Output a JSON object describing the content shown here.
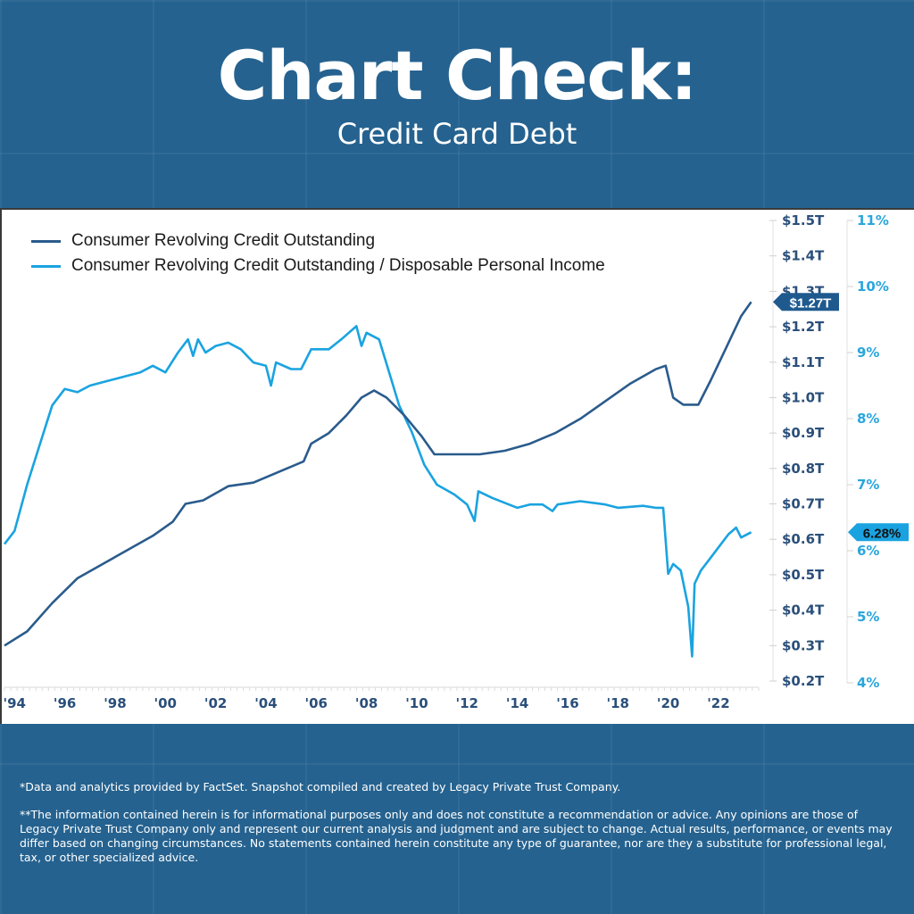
{
  "header": {
    "title": "Chart Check:",
    "subtitle": "Credit Card Debt"
  },
  "footnotes": {
    "note1": "*Data and analytics provided by FactSet. Snapshot compiled and created by Legacy Private Trust Company.",
    "note2": "**The information contained herein is for informational purposes only and does not constitute a recommendation or advice. Any opinions are those of Legacy Private Trust Company only and represent our current analysis and judgment and are subject to change. Actual results, performance, or events may differ based on changing circumstances. No statements contained herein constitute any type of guarantee, nor are they a substitute for professional legal, tax, or other specialized advice."
  },
  "colors": {
    "background": "#25628f",
    "credit_series": "#2a5b8c",
    "ratio_series": "#1aa3e0",
    "left_axis_text": "#2a4f7a",
    "right_axis_text": "#29a6dc"
  },
  "chart_data": {
    "type": "line",
    "title": "",
    "xlabel": "",
    "ylabel": "",
    "x_tick_labels": [
      "'94",
      "'96",
      "'98",
      "'00",
      "'02",
      "'04",
      "'06",
      "'08",
      "'10",
      "'12",
      "'14",
      "'16",
      "'18",
      "'20",
      "'22"
    ],
    "x_ticks": [
      1994,
      1996,
      1998,
      2000,
      2002,
      2004,
      2006,
      2008,
      2010,
      2012,
      2014,
      2016,
      2018,
      2020,
      2022
    ],
    "xlim": [
      1993.6,
      2023.6
    ],
    "y_left": {
      "range": [
        0.2,
        1.5
      ],
      "tick_values": [
        0.2,
        0.3,
        0.4,
        0.5,
        0.6,
        0.7,
        0.8,
        0.9,
        1.0,
        1.1,
        1.2,
        1.3,
        1.4,
        1.5
      ],
      "tick_labels": [
        "$0.2T",
        "$0.3T",
        "$0.4T",
        "$0.5T",
        "$0.6T",
        "$0.7T",
        "$0.8T",
        "$0.9T",
        "$1.0T",
        "$1.1T",
        "$1.2T",
        "$1.3T",
        "$1.4T",
        "$1.5T"
      ]
    },
    "y_right": {
      "range": [
        4,
        11
      ],
      "tick_values": [
        4,
        5,
        6,
        7,
        8,
        9,
        10,
        11
      ],
      "tick_labels": [
        "4%",
        "5%",
        "6%",
        "7%",
        "8%",
        "9%",
        "10%",
        "11%"
      ]
    },
    "legend_position": "top-left",
    "grid": false,
    "series": [
      {
        "name": "Consumer Revolving Credit Outstanding",
        "axis": "left",
        "unit": "trillion USD",
        "last_value_label": "$1.27T",
        "last_value": 1.27,
        "x": [
          1993.6,
          1994.5,
          1995.5,
          1996.5,
          1997.5,
          1998.5,
          1999.5,
          2000.3,
          2000.8,
          2001.5,
          2002.5,
          2003.5,
          2004.5,
          2005.5,
          2005.8,
          2006.5,
          2007.2,
          2007.8,
          2008.3,
          2008.8,
          2009.5,
          2010.2,
          2010.7,
          2011.5,
          2012.5,
          2013.5,
          2014.5,
          2015.5,
          2016.5,
          2017.5,
          2018.5,
          2019.5,
          2019.9,
          2020.2,
          2020.6,
          2021.2,
          2021.7,
          2022.3,
          2022.9,
          2023.3
        ],
        "values": [
          0.3,
          0.34,
          0.42,
          0.49,
          0.53,
          0.57,
          0.61,
          0.65,
          0.7,
          0.71,
          0.75,
          0.76,
          0.79,
          0.82,
          0.87,
          0.9,
          0.95,
          1.0,
          1.02,
          1.0,
          0.95,
          0.89,
          0.84,
          0.84,
          0.84,
          0.85,
          0.87,
          0.9,
          0.94,
          0.99,
          1.04,
          1.08,
          1.09,
          1.0,
          0.98,
          0.98,
          1.05,
          1.14,
          1.23,
          1.27
        ]
      },
      {
        "name": "Consumer Revolving Credit Outstanding / Disposable Personal Income",
        "axis": "right",
        "unit": "percent",
        "last_value_label": "6.28%",
        "last_value": 6.28,
        "x": [
          1993.6,
          1994.0,
          1994.5,
          1995.0,
          1995.5,
          1996.0,
          1996.5,
          1997.0,
          1997.5,
          1998.0,
          1998.5,
          1999.0,
          1999.5,
          2000.0,
          2000.5,
          2000.9,
          2001.1,
          2001.3,
          2001.6,
          2002.0,
          2002.5,
          2003.0,
          2003.5,
          2004.0,
          2004.2,
          2004.4,
          2005.0,
          2005.4,
          2005.8,
          2006.5,
          2007.0,
          2007.6,
          2007.8,
          2008.0,
          2008.5,
          2008.9,
          2009.3,
          2009.8,
          2010.3,
          2010.8,
          2011.5,
          2012.0,
          2012.3,
          2012.45,
          2013.0,
          2014.0,
          2014.5,
          2015.0,
          2015.4,
          2015.6,
          2016.5,
          2017.5,
          2018.0,
          2019.0,
          2019.5,
          2019.8,
          2020.0,
          2020.2,
          2020.5,
          2020.8,
          2020.95,
          2021.05,
          2021.3,
          2021.7,
          2022.0,
          2022.4,
          2022.7,
          2022.9,
          2023.3
        ],
        "values": [
          6.1,
          6.3,
          7.0,
          7.6,
          8.2,
          8.45,
          8.4,
          8.5,
          8.55,
          8.6,
          8.65,
          8.7,
          8.8,
          8.7,
          9.0,
          9.2,
          8.95,
          9.2,
          9.0,
          9.1,
          9.15,
          9.05,
          8.85,
          8.8,
          8.5,
          8.85,
          8.75,
          8.75,
          9.05,
          9.05,
          9.2,
          9.4,
          9.1,
          9.3,
          9.2,
          8.7,
          8.2,
          7.8,
          7.3,
          7.0,
          6.85,
          6.7,
          6.45,
          6.9,
          6.8,
          6.65,
          6.7,
          6.7,
          6.6,
          6.7,
          6.75,
          6.7,
          6.65,
          6.68,
          6.65,
          6.65,
          5.65,
          5.8,
          5.7,
          5.15,
          4.4,
          5.5,
          5.7,
          5.9,
          6.05,
          6.25,
          6.35,
          6.2,
          6.28
        ]
      }
    ]
  }
}
